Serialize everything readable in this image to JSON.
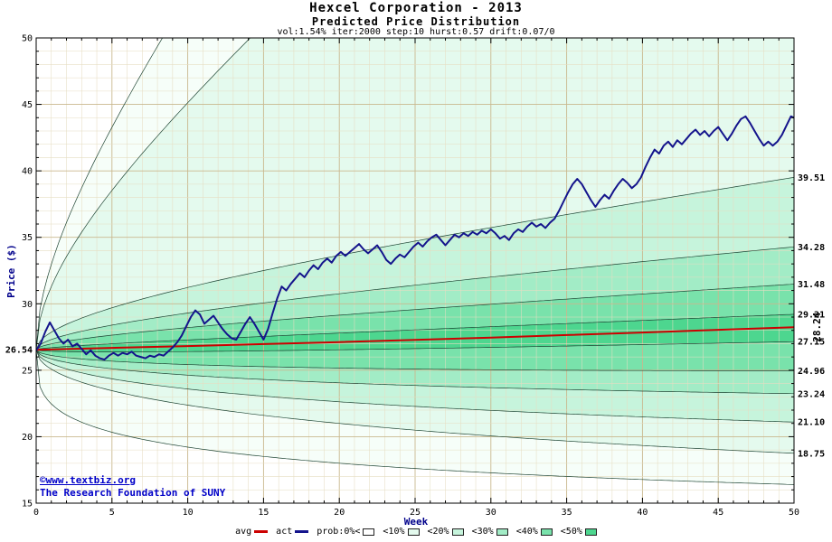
{
  "header": {
    "title": "Hexcel Corporation - 2013",
    "subtitle": "Predicted Price Distribution",
    "params": "vol:1.54% iter:2000 step:10 hurst:0.57 drift:0.07/0",
    "params_parsed": {
      "vol": "1.54%",
      "iter": "2000",
      "step": "10",
      "hurst": "0.57",
      "drift": "0.07/0"
    }
  },
  "watermark": {
    "line1": "©www.textbiz.org",
    "line2": "The Research Foundation of SUNY"
  },
  "legend": {
    "items": [
      {
        "label": "avg",
        "swatch": "line",
        "color": "#cc0000"
      },
      {
        "label": "act",
        "swatch": "line",
        "color": "#14148c"
      },
      {
        "label": "prob:0%<",
        "swatch": "rect",
        "color": "#ffffff"
      },
      {
        "label": "<10%",
        "swatch": "rect",
        "color": "#e4faee"
      },
      {
        "label": "<20%",
        "swatch": "rect",
        "color": "#c6f4dc"
      },
      {
        "label": "<30%",
        "swatch": "rect",
        "color": "#a2ecc6"
      },
      {
        "label": "<40%",
        "swatch": "rect",
        "color": "#79e2ab"
      },
      {
        "label": "<50%",
        "swatch": "rect",
        "color": "#4dd68f"
      }
    ]
  },
  "chart_data": {
    "type": "area",
    "title": "Hexcel Corporation - 2013",
    "subtitle": "Predicted Price Distribution",
    "xlabel": "Week",
    "ylabel": "Price ($)",
    "xlim": [
      0,
      50
    ],
    "ylim": [
      15,
      50
    ],
    "x_major_step": 5,
    "x_minor_step": 1,
    "y_major_step": 5,
    "y_minor_step": 1,
    "start_price": 26.54,
    "start_price_label": "26.54",
    "avg_end_price": 28.24,
    "avg_end_label": "28.24",
    "grid": {
      "on": true,
      "minor_color": "#e6ddc2",
      "major_color": "#c9b88e"
    },
    "colors": {
      "axis": "#000000",
      "axis_titles": "#00008b",
      "right_labels": "#000000",
      "avg_label": "#cc0000",
      "boundary_line": "#1e4433"
    },
    "fan": {
      "note": "predicted price distribution bands; boundary end = price at week 50, p = spread exponent vs time",
      "boundaries": [
        {
          "end": 130.0,
          "p": 0.5,
          "label": null
        },
        {
          "end": 90.0,
          "p": 0.5,
          "label": null
        },
        {
          "end": 39.51,
          "p": 0.5,
          "label": "39.51"
        },
        {
          "end": 34.28,
          "p": 0.5,
          "label": "34.28"
        },
        {
          "end": 31.48,
          "p": 0.5,
          "label": "31.48"
        },
        {
          "end": 29.21,
          "p": 0.5,
          "label": "29.21"
        },
        {
          "end": 27.15,
          "p": 0.5,
          "label": "27.15"
        },
        {
          "end": 24.96,
          "p": 0.5,
          "label": "24.96"
        },
        {
          "end": 23.24,
          "p": 0.5,
          "label": "23.24"
        },
        {
          "end": 21.1,
          "p": 0.5,
          "label": "21.10"
        },
        {
          "end": 18.75,
          "p": 0.5,
          "label": "18.75"
        },
        {
          "end": 16.4,
          "p": 0.3,
          "label": null
        }
      ],
      "band_colors": [
        "#f6fef9",
        "#e4faee",
        "#c6f4dc",
        "#a2ecc6",
        "#79e2ab",
        "#4dd68f",
        "#79e2ab",
        "#a2ecc6",
        "#c6f4dc",
        "#e4faee",
        "#f6fef9"
      ]
    },
    "series": [
      {
        "name": "avg",
        "color": "#cc0000",
        "width": 2,
        "points": [
          [
            0,
            26.54
          ],
          [
            5,
            26.68
          ],
          [
            10,
            26.82
          ],
          [
            15,
            26.97
          ],
          [
            20,
            27.12
          ],
          [
            25,
            27.28
          ],
          [
            30,
            27.46
          ],
          [
            35,
            27.65
          ],
          [
            40,
            27.84
          ],
          [
            45,
            28.04
          ],
          [
            50,
            28.24
          ]
        ]
      },
      {
        "name": "act",
        "color": "#14148c",
        "width": 2,
        "points": [
          [
            0,
            26.5
          ],
          [
            0.3,
            27.0
          ],
          [
            0.6,
            27.9
          ],
          [
            0.9,
            28.6
          ],
          [
            1.2,
            28.0
          ],
          [
            1.5,
            27.4
          ],
          [
            1.8,
            27.0
          ],
          [
            2.1,
            27.3
          ],
          [
            2.4,
            26.8
          ],
          [
            2.7,
            27.0
          ],
          [
            3.0,
            26.6
          ],
          [
            3.3,
            26.2
          ],
          [
            3.6,
            26.5
          ],
          [
            3.9,
            26.1
          ],
          [
            4.2,
            25.9
          ],
          [
            4.5,
            25.8
          ],
          [
            4.8,
            26.1
          ],
          [
            5.1,
            26.3
          ],
          [
            5.4,
            26.1
          ],
          [
            5.7,
            26.3
          ],
          [
            6.0,
            26.2
          ],
          [
            6.3,
            26.4
          ],
          [
            6.6,
            26.1
          ],
          [
            6.9,
            26.0
          ],
          [
            7.2,
            25.9
          ],
          [
            7.5,
            26.1
          ],
          [
            7.8,
            26.0
          ],
          [
            8.1,
            26.2
          ],
          [
            8.4,
            26.1
          ],
          [
            8.7,
            26.4
          ],
          [
            9.0,
            26.7
          ],
          [
            9.3,
            27.1
          ],
          [
            9.6,
            27.6
          ],
          [
            9.9,
            28.3
          ],
          [
            10.2,
            29.0
          ],
          [
            10.5,
            29.5
          ],
          [
            10.8,
            29.2
          ],
          [
            11.1,
            28.5
          ],
          [
            11.4,
            28.8
          ],
          [
            11.7,
            29.1
          ],
          [
            12.0,
            28.6
          ],
          [
            12.3,
            28.1
          ],
          [
            12.6,
            27.7
          ],
          [
            12.9,
            27.4
          ],
          [
            13.2,
            27.3
          ],
          [
            13.5,
            27.9
          ],
          [
            13.8,
            28.5
          ],
          [
            14.1,
            29.0
          ],
          [
            14.4,
            28.5
          ],
          [
            14.7,
            27.9
          ],
          [
            15.0,
            27.3
          ],
          [
            15.3,
            28.1
          ],
          [
            15.6,
            29.3
          ],
          [
            15.9,
            30.4
          ],
          [
            16.2,
            31.3
          ],
          [
            16.5,
            31.0
          ],
          [
            16.8,
            31.5
          ],
          [
            17.1,
            31.9
          ],
          [
            17.4,
            32.3
          ],
          [
            17.7,
            32.0
          ],
          [
            18.0,
            32.5
          ],
          [
            18.3,
            32.9
          ],
          [
            18.6,
            32.6
          ],
          [
            18.9,
            33.1
          ],
          [
            19.2,
            33.4
          ],
          [
            19.5,
            33.1
          ],
          [
            19.8,
            33.6
          ],
          [
            20.1,
            33.9
          ],
          [
            20.4,
            33.6
          ],
          [
            20.7,
            33.9
          ],
          [
            21.0,
            34.2
          ],
          [
            21.3,
            34.5
          ],
          [
            21.6,
            34.1
          ],
          [
            21.9,
            33.8
          ],
          [
            22.2,
            34.1
          ],
          [
            22.5,
            34.4
          ],
          [
            22.8,
            33.9
          ],
          [
            23.1,
            33.3
          ],
          [
            23.4,
            33.0
          ],
          [
            23.7,
            33.4
          ],
          [
            24.0,
            33.7
          ],
          [
            24.3,
            33.5
          ],
          [
            24.6,
            33.9
          ],
          [
            24.9,
            34.3
          ],
          [
            25.2,
            34.6
          ],
          [
            25.5,
            34.3
          ],
          [
            25.8,
            34.7
          ],
          [
            26.1,
            35.0
          ],
          [
            26.4,
            35.2
          ],
          [
            26.7,
            34.8
          ],
          [
            27.0,
            34.4
          ],
          [
            27.3,
            34.8
          ],
          [
            27.6,
            35.2
          ],
          [
            27.9,
            35.0
          ],
          [
            28.2,
            35.3
          ],
          [
            28.5,
            35.1
          ],
          [
            28.8,
            35.4
          ],
          [
            29.1,
            35.2
          ],
          [
            29.4,
            35.5
          ],
          [
            29.7,
            35.3
          ],
          [
            30.0,
            35.6
          ],
          [
            30.3,
            35.3
          ],
          [
            30.6,
            34.9
          ],
          [
            30.9,
            35.1
          ],
          [
            31.2,
            34.8
          ],
          [
            31.5,
            35.3
          ],
          [
            31.8,
            35.6
          ],
          [
            32.1,
            35.4
          ],
          [
            32.4,
            35.8
          ],
          [
            32.7,
            36.1
          ],
          [
            33.0,
            35.8
          ],
          [
            33.3,
            36.0
          ],
          [
            33.6,
            35.7
          ],
          [
            33.9,
            36.1
          ],
          [
            34.2,
            36.4
          ],
          [
            34.5,
            37.0
          ],
          [
            34.8,
            37.7
          ],
          [
            35.1,
            38.4
          ],
          [
            35.4,
            39.0
          ],
          [
            35.7,
            39.4
          ],
          [
            36.0,
            39.0
          ],
          [
            36.3,
            38.4
          ],
          [
            36.6,
            37.8
          ],
          [
            36.9,
            37.3
          ],
          [
            37.2,
            37.8
          ],
          [
            37.5,
            38.2
          ],
          [
            37.8,
            37.9
          ],
          [
            38.1,
            38.5
          ],
          [
            38.4,
            39.0
          ],
          [
            38.7,
            39.4
          ],
          [
            39.0,
            39.1
          ],
          [
            39.3,
            38.7
          ],
          [
            39.6,
            39.0
          ],
          [
            39.9,
            39.5
          ],
          [
            40.2,
            40.3
          ],
          [
            40.5,
            41.0
          ],
          [
            40.8,
            41.6
          ],
          [
            41.1,
            41.3
          ],
          [
            41.4,
            41.9
          ],
          [
            41.7,
            42.2
          ],
          [
            42.0,
            41.8
          ],
          [
            42.3,
            42.3
          ],
          [
            42.6,
            42.0
          ],
          [
            42.9,
            42.4
          ],
          [
            43.2,
            42.8
          ],
          [
            43.5,
            43.1
          ],
          [
            43.8,
            42.7
          ],
          [
            44.1,
            43.0
          ],
          [
            44.4,
            42.6
          ],
          [
            44.7,
            43.0
          ],
          [
            45.0,
            43.3
          ],
          [
            45.3,
            42.8
          ],
          [
            45.6,
            42.3
          ],
          [
            45.9,
            42.8
          ],
          [
            46.2,
            43.4
          ],
          [
            46.5,
            43.9
          ],
          [
            46.8,
            44.1
          ],
          [
            47.1,
            43.6
          ],
          [
            47.4,
            43.0
          ],
          [
            47.7,
            42.4
          ],
          [
            48.0,
            41.9
          ],
          [
            48.3,
            42.2
          ],
          [
            48.6,
            41.9
          ],
          [
            48.9,
            42.2
          ],
          [
            49.2,
            42.7
          ],
          [
            49.5,
            43.4
          ],
          [
            49.8,
            44.1
          ],
          [
            50.0,
            44.0
          ]
        ]
      }
    ]
  }
}
